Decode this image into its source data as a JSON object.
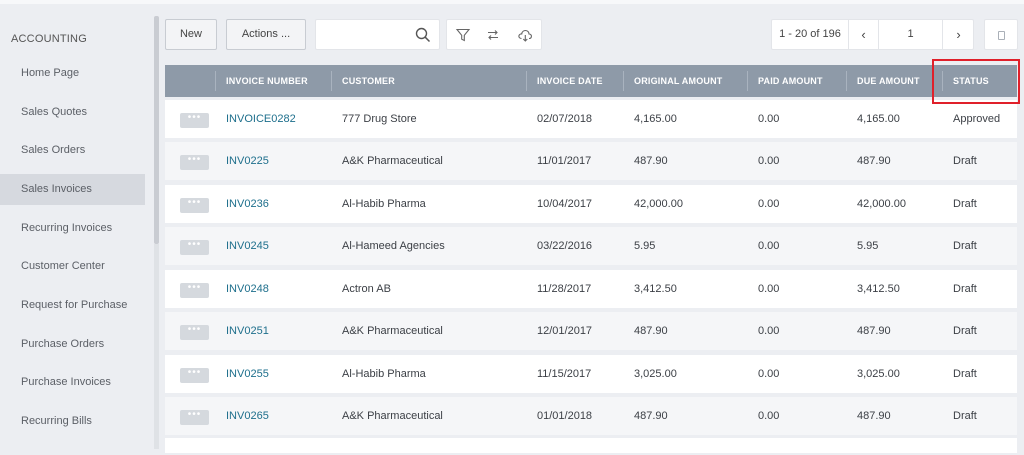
{
  "sidebar": {
    "section": "ACCOUNTING",
    "items": [
      {
        "label": "Home Page"
      },
      {
        "label": "Sales Quotes"
      },
      {
        "label": "Sales Orders"
      },
      {
        "label": "Sales Invoices",
        "active": true
      },
      {
        "label": "Recurring Invoices"
      },
      {
        "label": "Customer Center"
      },
      {
        "label": "Request for Purchase"
      },
      {
        "label": "Purchase Orders"
      },
      {
        "label": "Purchase Invoices"
      },
      {
        "label": "Recurring Bills"
      }
    ]
  },
  "toolbar": {
    "new_label": "New",
    "actions_label": "Actions ...",
    "search_value": "",
    "icons": [
      "search-icon",
      "filter-icon",
      "refresh-icon",
      "cloud-download-icon"
    ]
  },
  "pager": {
    "range": "1 - 20 of 196",
    "prev": "‹",
    "page": "1",
    "next": "›"
  },
  "table": {
    "columns": [
      "INVOICE NUMBER",
      "CUSTOMER",
      "INVOICE DATE",
      "ORIGINAL AMOUNT",
      "PAID AMOUNT",
      "DUE AMOUNT",
      "STATUS"
    ],
    "rows": [
      {
        "invoice": "INVOICE0282",
        "customer": "777 Drug Store",
        "date": "02/07/2018",
        "original": "4,165.00",
        "paid": "0.00",
        "due": "4,165.00",
        "status": "Approved"
      },
      {
        "invoice": "INV0225",
        "customer": "A&K Pharmaceutical",
        "date": "11/01/2017",
        "original": "487.90",
        "paid": "0.00",
        "due": "487.90",
        "status": "Draft"
      },
      {
        "invoice": "INV0236",
        "customer": "Al-Habib Pharma",
        "date": "10/04/2017",
        "original": "42,000.00",
        "paid": "0.00",
        "due": "42,000.00",
        "status": "Draft"
      },
      {
        "invoice": "INV0245",
        "customer": "Al-Hameed Agencies",
        "date": "03/22/2016",
        "original": "5.95",
        "paid": "0.00",
        "due": "5.95",
        "status": "Draft"
      },
      {
        "invoice": "INV0248",
        "customer": "Actron AB",
        "date": "11/28/2017",
        "original": "3,412.50",
        "paid": "0.00",
        "due": "3,412.50",
        "status": "Draft"
      },
      {
        "invoice": "INV0251",
        "customer": "A&K Pharmaceutical",
        "date": "12/01/2017",
        "original": "487.90",
        "paid": "0.00",
        "due": "487.90",
        "status": "Draft"
      },
      {
        "invoice": "INV0255",
        "customer": "Al-Habib Pharma",
        "date": "11/15/2017",
        "original": "3,025.00",
        "paid": "0.00",
        "due": "3,025.00",
        "status": "Draft"
      },
      {
        "invoice": "INV0265",
        "customer": "A&K Pharmaceutical",
        "date": "01/01/2018",
        "original": "487.90",
        "paid": "0.00",
        "due": "487.90",
        "status": "Draft"
      }
    ]
  },
  "colors": {
    "header_bg": "#8e9aa8",
    "link": "#1e6f8c",
    "highlight": "#e0202a"
  }
}
